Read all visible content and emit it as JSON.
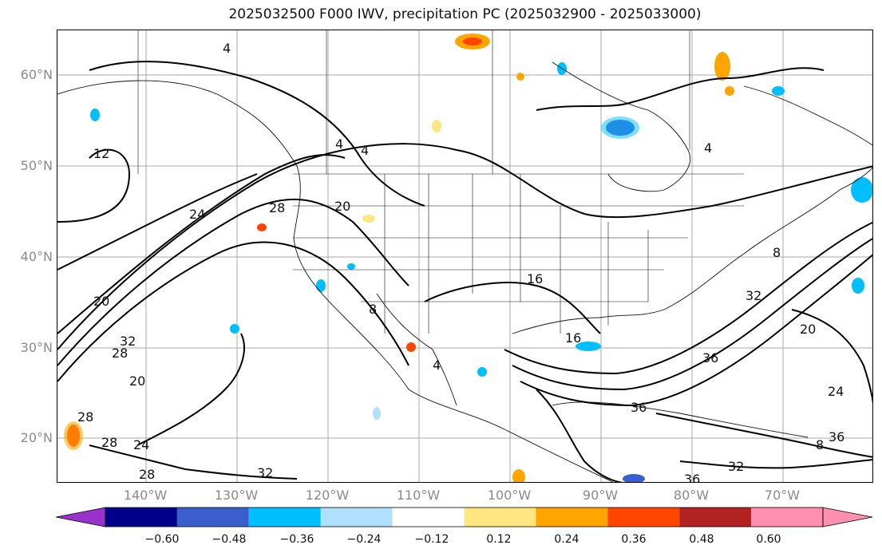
{
  "title": "2025032500 F000 IWV, precipitation PC (2025032900 - 2025033000)",
  "lat_labels": [
    "60°N",
    "50°N",
    "40°N",
    "30°N",
    "20°N"
  ],
  "lon_labels": [
    "140°W",
    "130°W",
    "120°W",
    "110°W",
    "100°W",
    "90°W",
    "80°W",
    "70°W"
  ],
  "colorbar": {
    "ticks": [
      "−0.60",
      "−0.48",
      "−0.36",
      "−0.24",
      "−0.12",
      "0.12",
      "0.24",
      "0.36",
      "0.48",
      "0.60"
    ],
    "colors": [
      "#9932cc",
      "#00008b",
      "#3a5fcd",
      "#00bfff",
      "#b0e0ff",
      "#ffffff",
      "#ffe680",
      "#ffa500",
      "#ff4500",
      "#b22222",
      "#ff8fb0",
      "#ff8fb0"
    ]
  },
  "contour_labels": [
    "4",
    "4",
    "4",
    "4",
    "12",
    "28",
    "20",
    "24",
    "20",
    "32",
    "28",
    "20",
    "16",
    "16",
    "8",
    "4",
    "8",
    "20",
    "24",
    "32",
    "36",
    "28",
    "28",
    "24",
    "28",
    "32",
    "36",
    "8",
    "32",
    "36",
    "36"
  ]
}
